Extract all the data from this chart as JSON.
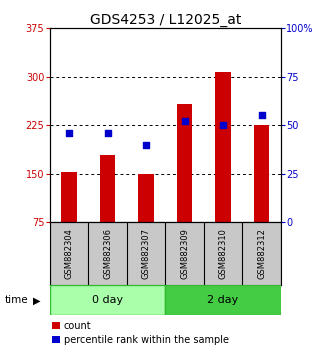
{
  "title": "GDS4253 / L12025_at",
  "samples": [
    "GSM882304",
    "GSM882306",
    "GSM882307",
    "GSM882309",
    "GSM882310",
    "GSM882312"
  ],
  "groups": [
    {
      "label": "0 day",
      "color": "#aaffaa",
      "edge_color": "#33bb33",
      "start": 0,
      "end": 3
    },
    {
      "label": "2 day",
      "color": "#44cc44",
      "edge_color": "#33bb33",
      "start": 3,
      "end": 6
    }
  ],
  "count_values": [
    152,
    178,
    150,
    258,
    308,
    225
  ],
  "percentile_values": [
    46,
    46,
    40,
    52,
    50,
    55
  ],
  "left_ylim": [
    75,
    375
  ],
  "right_ylim": [
    0,
    100
  ],
  "left_yticks": [
    75,
    150,
    225,
    300,
    375
  ],
  "right_yticks": [
    0,
    25,
    50,
    75,
    100
  ],
  "right_yticklabels": [
    "0",
    "25",
    "50",
    "75",
    "100%"
  ],
  "bar_color": "#cc0000",
  "dot_color": "#0000cc",
  "bar_width": 0.4,
  "legend_count": "count",
  "legend_pct": "percentile rank within the sample",
  "bg_color": "#ffffff",
  "sample_bg": "#c8c8c8",
  "title_fontsize": 10,
  "tick_fontsize": 7,
  "sample_fontsize": 6,
  "group_fontsize": 8,
  "legend_fontsize": 7
}
